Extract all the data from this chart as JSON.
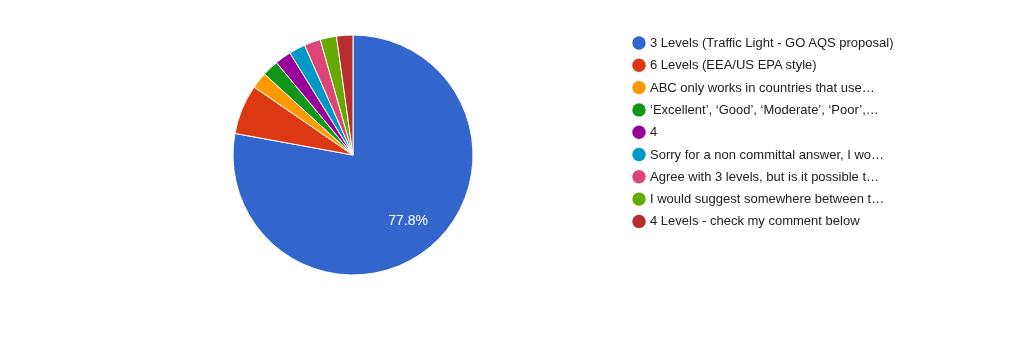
{
  "chart_data": {
    "type": "pie",
    "categories": [
      "3 Levels (Traffic Light - GO AQS proposal)",
      "6 Levels (EEA/US EPA style)",
      "ABC only works in countries that use…",
      "‘Excellent’, ‘Good’, ‘Moderate’, ‘Poor’,…",
      "4",
      "Sorry for a non committal answer, I wo…",
      "Agree with 3 levels, but is it possible t…",
      "I would suggest somewhere between t…",
      "4 Levels - check my comment below"
    ],
    "values": [
      77.8,
      6.7,
      2.2,
      2.2,
      2.2,
      2.2,
      2.2,
      2.2,
      2.2
    ],
    "value_labels": [
      "77.8%",
      null,
      null,
      null,
      null,
      null,
      null,
      null,
      null
    ],
    "colors": [
      "#3366cc",
      "#dc3912",
      "#ff9900",
      "#109618",
      "#990099",
      "#0099c6",
      "#dd4477",
      "#66aa00",
      "#b82e2e"
    ],
    "legend": "right"
  }
}
